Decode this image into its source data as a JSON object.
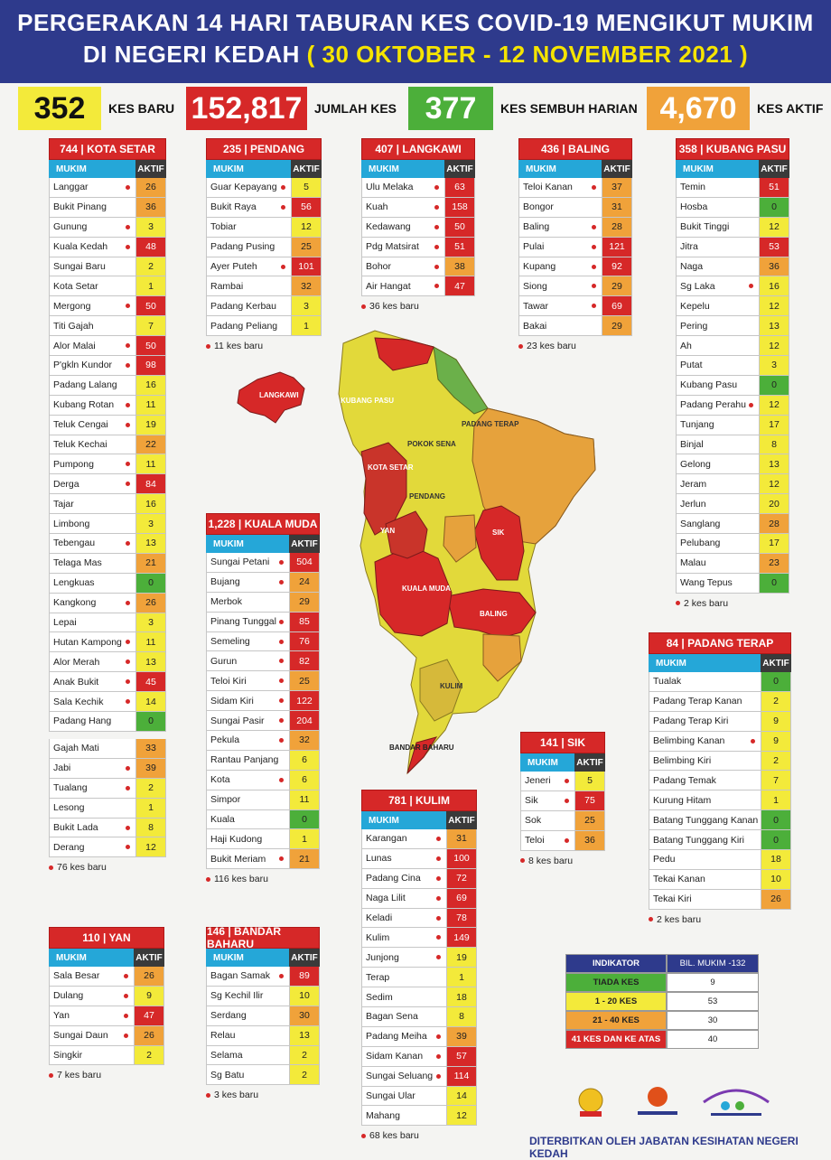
{
  "header": {
    "line1": "PERGERAKAN 14 HARI TABURAN KES COVID-19 MENGIKUT MUKIM",
    "line2a": "DI NEGERI KEDAH ",
    "line2b": "( 30 OKTOBER - 12 NOVEMBER 2021 )"
  },
  "stats": [
    {
      "value": "352",
      "label": "KES BARU"
    },
    {
      "value": "152,817",
      "label": "JUMLAH KES"
    },
    {
      "value": "377",
      "label": "KES SEMBUH HARIAN"
    },
    {
      "value": "4,670",
      "label": "KES AKTIF"
    }
  ],
  "col_mukim": "MUKIM",
  "col_aktif": "AKTIF",
  "districts": {
    "kota_setar": {
      "title": "744 | KOTA SETAR",
      "note": "76 kes baru",
      "rows": [
        [
          "Langgar",
          true,
          "26",
          "o"
        ],
        [
          "Bukit Pinang",
          false,
          "36",
          "o"
        ],
        [
          "Gunung",
          true,
          "3",
          "y"
        ],
        [
          "Kuala Kedah",
          true,
          "48",
          "r"
        ],
        [
          "Sungai Baru",
          false,
          "2",
          "y"
        ],
        [
          "Kota Setar",
          false,
          "1",
          "y"
        ],
        [
          "Mergong",
          true,
          "50",
          "r"
        ],
        [
          "Titi Gajah",
          false,
          "7",
          "y"
        ],
        [
          "Alor Malai",
          true,
          "50",
          "r"
        ],
        [
          "P'gkln Kundor",
          true,
          "98",
          "r"
        ],
        [
          "Padang Lalang",
          false,
          "16",
          "y"
        ],
        [
          "Kubang Rotan",
          true,
          "11",
          "y"
        ],
        [
          "Teluk Cengai",
          true,
          "19",
          "y"
        ],
        [
          "Teluk Kechai",
          false,
          "22",
          "o"
        ],
        [
          "Pumpong",
          true,
          "11",
          "y"
        ],
        [
          "Derga",
          true,
          "84",
          "r"
        ],
        [
          "Tajar",
          false,
          "16",
          "y"
        ],
        [
          "Limbong",
          false,
          "3",
          "y"
        ],
        [
          "Tebengau",
          true,
          "13",
          "y"
        ],
        [
          "Telaga Mas",
          false,
          "21",
          "o"
        ],
        [
          "Lengkuas",
          false,
          "0",
          "g"
        ],
        [
          "Kangkong",
          true,
          "26",
          "o"
        ],
        [
          "Lepai",
          false,
          "3",
          "y"
        ],
        [
          "Hutan Kampong",
          true,
          "11",
          "y"
        ],
        [
          "Alor Merah",
          true,
          "13",
          "y"
        ],
        [
          "Anak Bukit",
          true,
          "45",
          "r"
        ],
        [
          "Sala Kechik",
          true,
          "14",
          "y"
        ],
        [
          "Padang Hang",
          false,
          "0",
          "g"
        ]
      ],
      "rows2": [
        [
          "Gajah Mati",
          false,
          "33",
          "o"
        ],
        [
          "Jabi",
          true,
          "39",
          "o"
        ],
        [
          "Tualang",
          true,
          "2",
          "y"
        ],
        [
          "Lesong",
          false,
          "1",
          "y"
        ],
        [
          "Bukit Lada",
          true,
          "8",
          "y"
        ],
        [
          "Derang",
          true,
          "12",
          "y"
        ]
      ]
    },
    "pendang": {
      "title": "235 | PENDANG",
      "note": "11 kes baru",
      "rows": [
        [
          "Guar Kepayang",
          true,
          "5",
          "y"
        ],
        [
          "Bukit Raya",
          true,
          "56",
          "r"
        ],
        [
          "Tobiar",
          false,
          "12",
          "y"
        ],
        [
          "Padang Pusing",
          false,
          "25",
          "o"
        ],
        [
          "Ayer Puteh",
          true,
          "101",
          "r"
        ],
        [
          "Rambai",
          false,
          "32",
          "o"
        ],
        [
          "Padang Kerbau",
          false,
          "3",
          "y"
        ],
        [
          "Padang Peliang",
          false,
          "1",
          "y"
        ]
      ]
    },
    "langkawi": {
      "title": "407 | LANGKAWI",
      "note": "36 kes baru",
      "rows": [
        [
          "Ulu Melaka",
          true,
          "63",
          "r"
        ],
        [
          "Kuah",
          true,
          "158",
          "r"
        ],
        [
          "Kedawang",
          true,
          "50",
          "r"
        ],
        [
          "Pdg Matsirat",
          true,
          "51",
          "r"
        ],
        [
          "Bohor",
          true,
          "38",
          "o"
        ],
        [
          "Air Hangat",
          true,
          "47",
          "r"
        ]
      ]
    },
    "baling": {
      "title": "436 | BALING",
      "note": "23 kes baru",
      "rows": [
        [
          "Teloi Kanan",
          true,
          "37",
          "o"
        ],
        [
          "Bongor",
          false,
          "31",
          "o"
        ],
        [
          "Baling",
          true,
          "28",
          "o"
        ],
        [
          "Pulai",
          true,
          "121",
          "r"
        ],
        [
          "Kupang",
          true,
          "92",
          "r"
        ],
        [
          "Siong",
          true,
          "29",
          "o"
        ],
        [
          "Tawar",
          true,
          "69",
          "r"
        ],
        [
          "Bakai",
          false,
          "29",
          "o"
        ]
      ]
    },
    "kubang_pasu": {
      "title": "358 | KUBANG PASU",
      "note": "2 kes baru",
      "rows": [
        [
          "Temin",
          false,
          "51",
          "r"
        ],
        [
          "Hosba",
          false,
          "0",
          "g"
        ],
        [
          "Bukit Tinggi",
          false,
          "12",
          "y"
        ],
        [
          "Jitra",
          false,
          "53",
          "r"
        ],
        [
          "Naga",
          false,
          "36",
          "o"
        ],
        [
          "Sg Laka",
          true,
          "16",
          "y"
        ],
        [
          "Kepelu",
          false,
          "12",
          "y"
        ],
        [
          "Pering",
          false,
          "13",
          "y"
        ],
        [
          "Ah",
          false,
          "12",
          "y"
        ],
        [
          "Putat",
          false,
          "3",
          "y"
        ],
        [
          "Kubang Pasu",
          false,
          "0",
          "g"
        ],
        [
          "Padang Perahu",
          true,
          "12",
          "y"
        ],
        [
          "Tunjang",
          false,
          "17",
          "y"
        ],
        [
          "Binjal",
          false,
          "8",
          "y"
        ],
        [
          "Gelong",
          false,
          "13",
          "y"
        ],
        [
          "Jeram",
          false,
          "12",
          "y"
        ],
        [
          "Jerlun",
          false,
          "20",
          "y"
        ],
        [
          "Sanglang",
          false,
          "28",
          "o"
        ],
        [
          "Pelubang",
          false,
          "17",
          "y"
        ],
        [
          "Malau",
          false,
          "23",
          "o"
        ],
        [
          "Wang Tepus",
          false,
          "0",
          "g"
        ]
      ]
    },
    "kuala_muda": {
      "title": "1,228 | KUALA MUDA",
      "note": "116 kes baru",
      "rows": [
        [
          "Sungai Petani",
          true,
          "504",
          "r"
        ],
        [
          "Bujang",
          true,
          "24",
          "o"
        ],
        [
          "Merbok",
          false,
          "29",
          "o"
        ],
        [
          "Pinang Tunggal",
          true,
          "85",
          "r"
        ],
        [
          "Semeling",
          true,
          "76",
          "r"
        ],
        [
          "Gurun",
          true,
          "82",
          "r"
        ],
        [
          "Teloi Kiri",
          true,
          "25",
          "o"
        ],
        [
          "Sidam Kiri",
          true,
          "122",
          "r"
        ],
        [
          "Sungai Pasir",
          true,
          "204",
          "r"
        ],
        [
          "Pekula",
          true,
          "32",
          "o"
        ],
        [
          "Rantau Panjang",
          false,
          "6",
          "y"
        ],
        [
          "Kota",
          true,
          "6",
          "y"
        ],
        [
          "Simpor",
          false,
          "11",
          "y"
        ],
        [
          "Kuala",
          false,
          "0",
          "g"
        ],
        [
          "Haji Kudong",
          false,
          "1",
          "y"
        ],
        [
          "Bukit Meriam",
          true,
          "21",
          "o"
        ]
      ]
    },
    "padang_terap": {
      "title": "84 | PADANG TERAP",
      "note": "2 kes baru",
      "rows": [
        [
          "Tualak",
          false,
          "0",
          "g"
        ],
        [
          "Padang Terap Kanan",
          false,
          "2",
          "y"
        ],
        [
          "Padang Terap Kiri",
          false,
          "9",
          "y"
        ],
        [
          "Belimbing Kanan",
          true,
          "9",
          "y"
        ],
        [
          "Belimbing Kiri",
          false,
          "2",
          "y"
        ],
        [
          "Padang Temak",
          false,
          "7",
          "y"
        ],
        [
          "Kurung Hitam",
          false,
          "1",
          "y"
        ],
        [
          "Batang Tunggang Kanan",
          false,
          "0",
          "g"
        ],
        [
          "Batang Tunggang Kiri",
          false,
          "0",
          "g"
        ],
        [
          "Pedu",
          false,
          "18",
          "y"
        ],
        [
          "Tekai Kanan",
          false,
          "10",
          "y"
        ],
        [
          "Tekai Kiri",
          false,
          "26",
          "o"
        ]
      ]
    },
    "sik": {
      "title": "141 | SIK",
      "note": "8 kes baru",
      "rows": [
        [
          "Jeneri",
          true,
          "5",
          "y"
        ],
        [
          "Sik",
          true,
          "75",
          "r"
        ],
        [
          "Sok",
          false,
          "25",
          "o"
        ],
        [
          "Teloi",
          true,
          "36",
          "o"
        ]
      ]
    },
    "kulim": {
      "title": "781 | KULIM",
      "note": "68 kes baru",
      "rows": [
        [
          "Karangan",
          true,
          "31",
          "o"
        ],
        [
          "Lunas",
          true,
          "100",
          "r"
        ],
        [
          "Padang Cina",
          true,
          "72",
          "r"
        ],
        [
          "Naga Lilit",
          true,
          "69",
          "r"
        ],
        [
          "Keladi",
          true,
          "78",
          "r"
        ],
        [
          "Kulim",
          true,
          "149",
          "r"
        ],
        [
          "Junjong",
          true,
          "19",
          "y"
        ],
        [
          "Terap",
          false,
          "1",
          "y"
        ],
        [
          "Sedim",
          false,
          "18",
          "y"
        ],
        [
          "Bagan Sena",
          false,
          "8",
          "y"
        ],
        [
          "Padang Meiha",
          true,
          "39",
          "o"
        ],
        [
          "Sidam Kanan",
          true,
          "57",
          "r"
        ],
        [
          "Sungai Seluang",
          true,
          "114",
          "r"
        ],
        [
          "Sungai Ular",
          false,
          "14",
          "y"
        ],
        [
          "Mahang",
          false,
          "12",
          "y"
        ]
      ]
    },
    "yan": {
      "title": "110 | YAN",
      "note": "7 kes baru",
      "rows": [
        [
          "Sala Besar",
          true,
          "26",
          "o"
        ],
        [
          "Dulang",
          true,
          "9",
          "y"
        ],
        [
          "Yan",
          true,
          "47",
          "r"
        ],
        [
          "Sungai Daun",
          true,
          "26",
          "o"
        ],
        [
          "Singkir",
          false,
          "2",
          "y"
        ]
      ]
    },
    "bandar_baharu": {
      "title": "146 | BANDAR BAHARU",
      "note": "3 kes baru",
      "rows": [
        [
          "Bagan Samak",
          true,
          "89",
          "r"
        ],
        [
          "Sg Kechil Ilir",
          false,
          "10",
          "y"
        ],
        [
          "Serdang",
          false,
          "30",
          "o"
        ],
        [
          "Relau",
          false,
          "13",
          "y"
        ],
        [
          "Selama",
          false,
          "2",
          "y"
        ],
        [
          "Sg Batu",
          false,
          "2",
          "y"
        ]
      ]
    }
  },
  "map_labels": [
    "LANGKAWI",
    "KUBANG PASU",
    "PADANG TERAP",
    "POKOK SENA",
    "KOTA SETAR",
    "PENDANG",
    "YAN",
    "SIK",
    "KUALA MUDA",
    "BALING",
    "KULIM",
    "BANDAR BAHARU"
  ],
  "legend": {
    "h1": "INDIKATOR",
    "h2": "BIL. MUKIM -132",
    "rows": [
      [
        "TIADA KES",
        "9",
        "#4caf3a"
      ],
      [
        "1 - 20 KES",
        "53",
        "#f3ea3a"
      ],
      [
        "21 - 40 KES",
        "30",
        "#f0a23a"
      ],
      [
        "41 KES DAN KE ATAS",
        "40",
        "#d62828"
      ]
    ]
  },
  "logos": [
    "Jata Negara",
    "Majulah Kesihatan",
    "Kedah Sejahtera"
  ],
  "footer": "DITERBITKAN OLEH JABATAN KESIHATAN NEGERI KEDAH"
}
